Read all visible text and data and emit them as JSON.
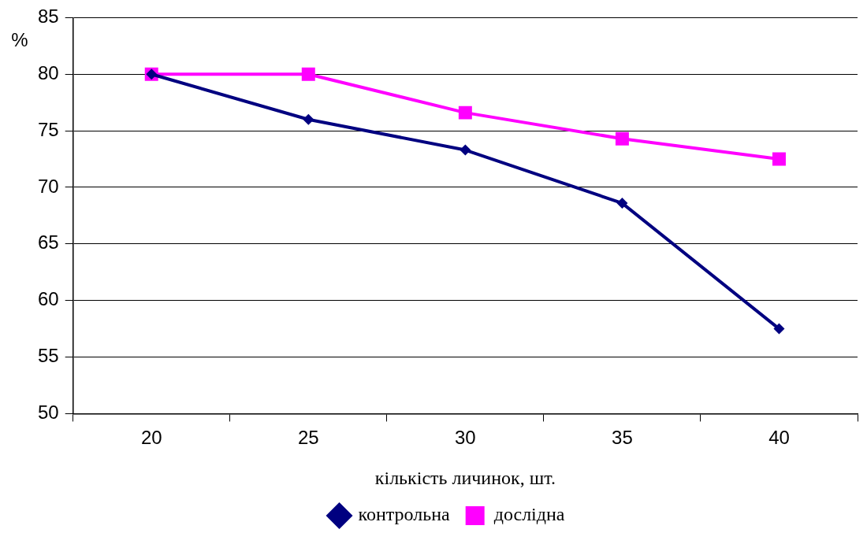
{
  "chart_data": {
    "type": "line",
    "xlabel": "кількість личинок, шт.",
    "ylabel": "%",
    "categories": [
      "20",
      "25",
      "30",
      "35",
      "40"
    ],
    "series": [
      {
        "name": "контрольна",
        "color": "#000080",
        "marker": "diamond",
        "values": [
          80,
          76,
          73.3,
          68.6,
          57.5
        ]
      },
      {
        "name": "дослідна",
        "color": "#ff00ff",
        "marker": "square",
        "values": [
          80,
          80,
          76.6,
          74.3,
          72.5
        ]
      }
    ],
    "ylim": [
      50,
      85
    ],
    "yticks": [
      50,
      55,
      60,
      65,
      70,
      75,
      80,
      85
    ],
    "grid": "y",
    "legend": "bottom"
  }
}
